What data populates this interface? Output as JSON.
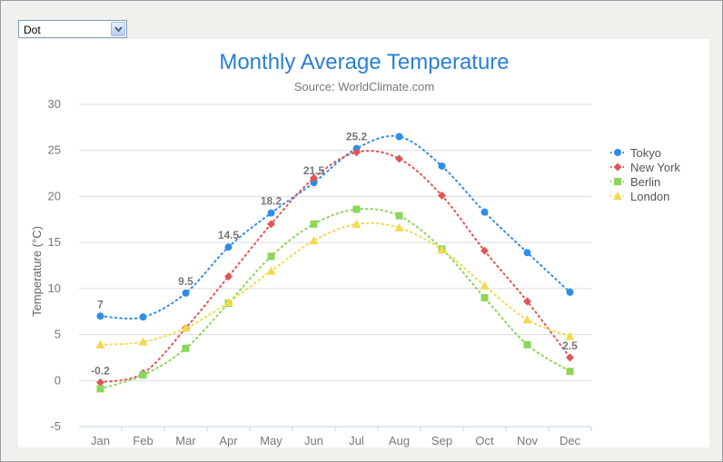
{
  "controls": {
    "chart_type_selected": "Dot"
  },
  "chart_data": {
    "type": "line",
    "title": "Monthly Average Temperature",
    "subtitle": "Source: WorldClimate.com",
    "xlabel": "",
    "ylabel": "Temperature (°C)",
    "ylim": [
      -5,
      30
    ],
    "yticks": [
      -5,
      0,
      5,
      10,
      15,
      20,
      25,
      30
    ],
    "grid": true,
    "legend_position": "right",
    "categories": [
      "Jan",
      "Feb",
      "Mar",
      "Apr",
      "May",
      "Jun",
      "Jul",
      "Aug",
      "Sep",
      "Oct",
      "Nov",
      "Dec"
    ],
    "series": [
      {
        "name": "Tokyo",
        "color": "#2f8ee6",
        "marker": "circle",
        "values": [
          7.0,
          6.9,
          9.5,
          14.5,
          18.2,
          21.5,
          25.2,
          26.5,
          23.3,
          18.3,
          13.9,
          9.6
        ],
        "labels": [
          "7",
          null,
          "9.5",
          "14.5",
          "18.2",
          "21.5",
          "25.2",
          null,
          null,
          null,
          null,
          null
        ]
      },
      {
        "name": "New York",
        "color": "#e05555",
        "marker": "diamond",
        "values": [
          -0.2,
          0.8,
          5.7,
          11.3,
          17.0,
          22.0,
          24.8,
          24.1,
          20.1,
          14.1,
          8.6,
          2.5
        ],
        "labels": [
          "-0.2",
          null,
          null,
          null,
          null,
          null,
          null,
          null,
          null,
          null,
          null,
          "2.5"
        ]
      },
      {
        "name": "Berlin",
        "color": "#8cd65a",
        "marker": "square",
        "values": [
          -0.9,
          0.6,
          3.5,
          8.4,
          13.5,
          17.0,
          18.6,
          17.9,
          14.3,
          9.0,
          3.9,
          1.0
        ],
        "labels": []
      },
      {
        "name": "London",
        "color": "#f2d94e",
        "marker": "triangle",
        "values": [
          3.9,
          4.2,
          5.7,
          8.5,
          11.9,
          15.2,
          17.0,
          16.6,
          14.2,
          10.3,
          6.6,
          4.8
        ],
        "labels": []
      }
    ]
  }
}
